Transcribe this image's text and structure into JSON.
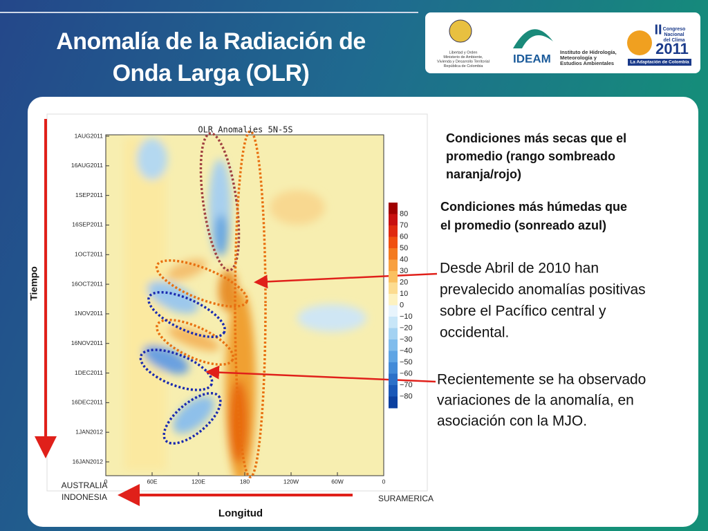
{
  "header": {
    "title_lines": [
      "Anomalía de la Radiación de",
      "Onda Larga (OLR)"
    ]
  },
  "logos": {
    "ministry": [
      "Libertad y Orden",
      "Ministerio de Ambiente,",
      "Vivienda y Desarrollo Territorial",
      "República de Colombia"
    ],
    "ideam": {
      "name": "IDEAM",
      "lines": [
        "Instituto de Hidrología,",
        "Meteorología y",
        "Estudios Ambientales"
      ]
    },
    "congress": {
      "lines": [
        "II",
        "Congreso",
        "Nacional",
        "del Clima",
        "2011"
      ],
      "tagline": "La Adaptación de Colombia"
    }
  },
  "figure": {
    "title": "OLR Anomalies 5N-5S",
    "y_labels": [
      "1AUG2011",
      "16AUG2011",
      "1SEP2011",
      "16SEP2011",
      "1OCT2011",
      "16OCT2011",
      "1NOV2011",
      "16NOV2011",
      "1DEC2011",
      "16DEC2011",
      "1JAN2012",
      "16JAN2012"
    ],
    "x_labels": [
      "0",
      "60E",
      "120E",
      "180",
      "120W",
      "60W",
      "0"
    ],
    "colorbar_labels": [
      "80",
      "70",
      "60",
      "50",
      "40",
      "30",
      "20",
      "10",
      "0",
      "−10",
      "−20",
      "−30",
      "−40",
      "−50",
      "−60",
      "−70",
      "−80"
    ],
    "y_axis": "Tiempo",
    "x_axis": "Longitud",
    "left_region": [
      "AUSTRALIA",
      "INDONESIA"
    ],
    "right_region": "SURAMERICA"
  },
  "notes": [
    {
      "lines": [
        "Condiciones más secas que el",
        "promedio (rango sombreado",
        "naranja/rojo)"
      ]
    },
    {
      "lines": [
        "Condiciones más húmedas que",
        "el promedio (sonreado azul)"
      ]
    },
    {
      "lines": [
        "Desde Abril de 2010 han",
        "prevalecido anomalías positivas",
        "sobre el Pacífico central y",
        "occidental."
      ]
    },
    {
      "lines": [
        "Recientemente se ha observado",
        "variaciones de la anomalía, en",
        "asociación con la MJO."
      ]
    }
  ]
}
